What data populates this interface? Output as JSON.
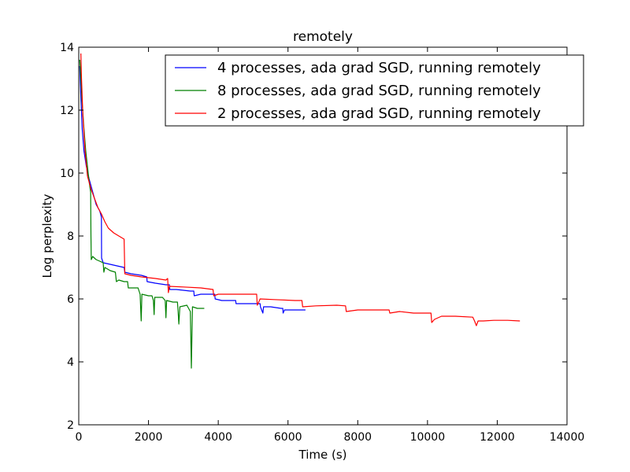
{
  "chart_data": {
    "type": "line",
    "title": "remotely",
    "xlabel": "Time (s)",
    "ylabel": "Log perplexity",
    "xlim": [
      0,
      14000
    ],
    "ylim": [
      2,
      14
    ],
    "xticks": [
      0,
      2000,
      4000,
      6000,
      8000,
      10000,
      12000,
      14000
    ],
    "yticks": [
      2,
      4,
      6,
      8,
      10,
      12,
      14
    ],
    "grid": false,
    "legend_position": "top-right",
    "series": [
      {
        "name": "4 processes, ada grad SGD, running remotely",
        "color": "#0000ff",
        "points": [
          [
            30,
            13.4
          ],
          [
            60,
            12.4
          ],
          [
            100,
            11.4
          ],
          [
            150,
            10.7
          ],
          [
            220,
            10.2
          ],
          [
            300,
            9.8
          ],
          [
            400,
            9.4
          ],
          [
            500,
            9.0
          ],
          [
            600,
            8.8
          ],
          [
            650,
            8.6
          ],
          [
            655,
            7.3
          ],
          [
            700,
            7.15
          ],
          [
            900,
            7.1
          ],
          [
            1100,
            7.05
          ],
          [
            1300,
            7.0
          ],
          [
            1320,
            6.85
          ],
          [
            1500,
            6.8
          ],
          [
            1800,
            6.75
          ],
          [
            1950,
            6.7
          ],
          [
            1960,
            6.55
          ],
          [
            2200,
            6.5
          ],
          [
            2500,
            6.45
          ],
          [
            2600,
            6.45
          ],
          [
            2610,
            6.3
          ],
          [
            2800,
            6.3
          ],
          [
            3200,
            6.25
          ],
          [
            3300,
            6.25
          ],
          [
            3310,
            6.1
          ],
          [
            3500,
            6.15
          ],
          [
            3900,
            6.15
          ],
          [
            3910,
            6.0
          ],
          [
            4100,
            5.95
          ],
          [
            4500,
            5.95
          ],
          [
            4510,
            5.85
          ],
          [
            4800,
            5.85
          ],
          [
            5200,
            5.85
          ],
          [
            5210,
            5.75
          ],
          [
            5280,
            5.55
          ],
          [
            5300,
            5.75
          ],
          [
            5500,
            5.75
          ],
          [
            5800,
            5.7
          ],
          [
            5850,
            5.7
          ],
          [
            5860,
            5.55
          ],
          [
            5900,
            5.65
          ],
          [
            6200,
            5.65
          ],
          [
            6500,
            5.65
          ]
        ]
      },
      {
        "name": "8 processes, ada grad SGD, running remotely",
        "color": "#008000",
        "points": [
          [
            30,
            13.6
          ],
          [
            60,
            13.0
          ],
          [
            100,
            12.2
          ],
          [
            150,
            11.4
          ],
          [
            200,
            10.7
          ],
          [
            250,
            10.2
          ],
          [
            300,
            9.7
          ],
          [
            340,
            9.4
          ],
          [
            350,
            8.0
          ],
          [
            360,
            7.25
          ],
          [
            400,
            7.35
          ],
          [
            500,
            7.25
          ],
          [
            600,
            7.2
          ],
          [
            700,
            7.15
          ],
          [
            720,
            6.85
          ],
          [
            750,
            7.0
          ],
          [
            900,
            6.9
          ],
          [
            1050,
            6.85
          ],
          [
            1080,
            6.55
          ],
          [
            1150,
            6.6
          ],
          [
            1300,
            6.55
          ],
          [
            1400,
            6.55
          ],
          [
            1420,
            6.35
          ],
          [
            1500,
            6.35
          ],
          [
            1700,
            6.35
          ],
          [
            1760,
            6.15
          ],
          [
            1790,
            5.3
          ],
          [
            1810,
            6.15
          ],
          [
            2000,
            6.1
          ],
          [
            2100,
            6.1
          ],
          [
            2140,
            5.95
          ],
          [
            2160,
            5.5
          ],
          [
            2180,
            6.05
          ],
          [
            2400,
            6.05
          ],
          [
            2480,
            5.95
          ],
          [
            2500,
            5.4
          ],
          [
            2520,
            5.95
          ],
          [
            2700,
            5.9
          ],
          [
            2830,
            5.9
          ],
          [
            2850,
            5.6
          ],
          [
            2870,
            5.2
          ],
          [
            2900,
            5.75
          ],
          [
            3100,
            5.8
          ],
          [
            3200,
            5.6
          ],
          [
            3230,
            3.8
          ],
          [
            3260,
            5.75
          ],
          [
            3400,
            5.7
          ],
          [
            3600,
            5.7
          ]
        ]
      },
      {
        "name": "2 processes, ada grad SGD, running remotely",
        "color": "#ff0000",
        "points": [
          [
            60,
            13.8
          ],
          [
            80,
            13.0
          ],
          [
            120,
            11.8
          ],
          [
            180,
            10.7
          ],
          [
            250,
            9.9
          ],
          [
            350,
            9.5
          ],
          [
            450,
            9.2
          ],
          [
            550,
            8.9
          ],
          [
            650,
            8.7
          ],
          [
            750,
            8.45
          ],
          [
            850,
            8.25
          ],
          [
            1000,
            8.1
          ],
          [
            1150,
            8.0
          ],
          [
            1300,
            7.9
          ],
          [
            1320,
            6.8
          ],
          [
            1500,
            6.75
          ],
          [
            1800,
            6.7
          ],
          [
            2200,
            6.65
          ],
          [
            2500,
            6.6
          ],
          [
            2550,
            6.65
          ],
          [
            2570,
            6.2
          ],
          [
            2600,
            6.4
          ],
          [
            3000,
            6.38
          ],
          [
            3500,
            6.35
          ],
          [
            3850,
            6.3
          ],
          [
            3870,
            6.1
          ],
          [
            4000,
            6.15
          ],
          [
            4500,
            6.15
          ],
          [
            5100,
            6.15
          ],
          [
            5120,
            5.8
          ],
          [
            5200,
            6.0
          ],
          [
            5600,
            5.98
          ],
          [
            6200,
            5.95
          ],
          [
            6400,
            5.95
          ],
          [
            6420,
            5.75
          ],
          [
            6800,
            5.78
          ],
          [
            7400,
            5.8
          ],
          [
            7650,
            5.78
          ],
          [
            7670,
            5.6
          ],
          [
            8000,
            5.65
          ],
          [
            8500,
            5.65
          ],
          [
            8900,
            5.65
          ],
          [
            8920,
            5.55
          ],
          [
            9200,
            5.6
          ],
          [
            9600,
            5.55
          ],
          [
            10100,
            5.55
          ],
          [
            10120,
            5.25
          ],
          [
            10200,
            5.35
          ],
          [
            10400,
            5.45
          ],
          [
            10800,
            5.45
          ],
          [
            11300,
            5.42
          ],
          [
            11350,
            5.3
          ],
          [
            11400,
            5.15
          ],
          [
            11450,
            5.3
          ],
          [
            11600,
            5.3
          ],
          [
            11900,
            5.32
          ],
          [
            12300,
            5.32
          ],
          [
            12650,
            5.3
          ]
        ]
      }
    ]
  }
}
